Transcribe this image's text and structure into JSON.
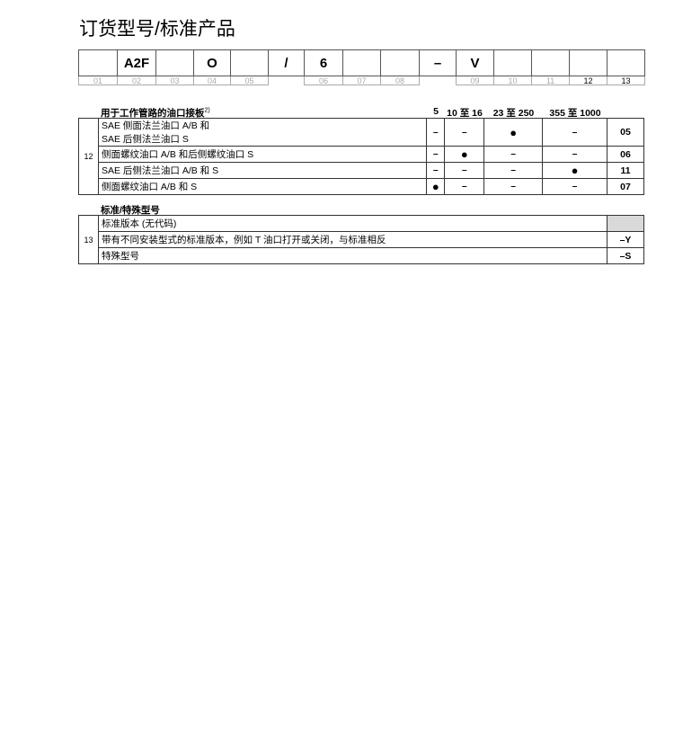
{
  "title": "订货型号/标准产品",
  "code_cells": [
    "",
    "A2F",
    "",
    "O",
    "",
    "/",
    "6",
    "",
    "",
    "–",
    "V",
    "",
    "",
    "",
    ""
  ],
  "code_numbers": [
    "01",
    "02",
    "03",
    "04",
    "05",
    "06",
    "07",
    "08",
    "09",
    "10",
    "11",
    "12",
    "13"
  ],
  "section12": {
    "title": "用于工作管路的油口接板",
    "footnote": "2)",
    "row_label": "12",
    "columns": [
      "5",
      "10 至 16",
      "23 至 250",
      "355 至 1000"
    ],
    "rows": [
      {
        "desc": [
          "SAE 侧面法兰油口 A/B 和",
          "SAE 后侧法兰油口 S"
        ],
        "marks": [
          "–",
          "–",
          "●",
          "–"
        ],
        "code": "05"
      },
      {
        "desc": [
          "侧面螺纹油口 A/B 和后侧螺纹油口 S"
        ],
        "marks": [
          "–",
          "●",
          "–",
          "–"
        ],
        "code": "06"
      },
      {
        "desc": [
          "SAE 后侧法兰油口 A/B 和 S"
        ],
        "marks": [
          "–",
          "–",
          "–",
          "●"
        ],
        "code": "11"
      },
      {
        "desc": [
          "侧面螺纹油口 A/B 和 S"
        ],
        "marks": [
          "●",
          "–",
          "–",
          "–"
        ],
        "code": "07"
      }
    ]
  },
  "section13": {
    "title": "标准/特殊型号",
    "row_label": "13",
    "rows": [
      {
        "desc": "标准版本 (无代码)",
        "code": ""
      },
      {
        "desc": "带有不同安装型式的标准版本，例如 T 油口打开或关闭，与标准相反",
        "code": "–Y"
      },
      {
        "desc": "特殊型号",
        "code": "–S"
      }
    ]
  }
}
